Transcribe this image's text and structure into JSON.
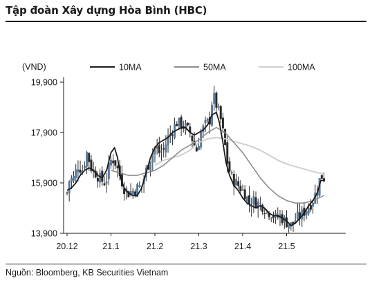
{
  "title": "Tập đoàn Xây dựng Hòa Bình (HBC)",
  "source": "Nguồn: Bloomberg, KB Securities Vietnam",
  "chart_data": {
    "type": "candlestick",
    "unit_label": "(VND)",
    "y_ticks": [
      {
        "value": 13900,
        "label": "13,900"
      },
      {
        "value": 15900,
        "label": "15,900"
      },
      {
        "value": 17900,
        "label": "17,900"
      },
      {
        "value": 19900,
        "label": "19,900"
      }
    ],
    "ylim": [
      13900,
      19900
    ],
    "x_ticks": [
      {
        "month": 0,
        "label": "20.12"
      },
      {
        "month": 1,
        "label": "21.1"
      },
      {
        "month": 2,
        "label": "21.2"
      },
      {
        "month": 3,
        "label": "21.3"
      },
      {
        "month": 4,
        "label": "21.4"
      },
      {
        "month": 5,
        "label": "21.5"
      }
    ],
    "xlim_months": [
      0,
      5.85
    ],
    "colors": {
      "up": "#5a7a9a",
      "down": "#2a2a2a",
      "ma10": "#1a1a1a",
      "ma50": "#8c8c8c",
      "ma100": "#cfcfcf"
    },
    "legend": [
      {
        "name": "10MA",
        "color": "#1a1a1a"
      },
      {
        "name": "50MA",
        "color": "#8c8c8c"
      },
      {
        "name": "100MA",
        "color": "#cfcfcf"
      }
    ],
    "close_anchors": [
      [
        0.0,
        15500
      ],
      [
        0.05,
        16000
      ],
      [
        0.15,
        16100
      ],
      [
        0.25,
        16600
      ],
      [
        0.35,
        16400
      ],
      [
        0.45,
        17100
      ],
      [
        0.55,
        16500
      ],
      [
        0.65,
        16300
      ],
      [
        0.78,
        16000
      ],
      [
        0.88,
        15900
      ],
      [
        0.95,
        16500
      ],
      [
        1.02,
        16900
      ],
      [
        1.1,
        16700
      ],
      [
        1.2,
        16200
      ],
      [
        1.3,
        15700
      ],
      [
        1.4,
        15500
      ],
      [
        1.5,
        15600
      ],
      [
        1.6,
        15700
      ],
      [
        1.7,
        15800
      ],
      [
        1.8,
        16400
      ],
      [
        1.9,
        16900
      ],
      [
        2.0,
        17300
      ],
      [
        2.1,
        17100
      ],
      [
        2.2,
        17200
      ],
      [
        2.3,
        17700
      ],
      [
        2.4,
        18000
      ],
      [
        2.5,
        18300
      ],
      [
        2.6,
        18200
      ],
      [
        2.7,
        18100
      ],
      [
        2.8,
        17900
      ],
      [
        2.9,
        17400
      ],
      [
        2.95,
        17200
      ],
      [
        3.05,
        17900
      ],
      [
        3.15,
        18200
      ],
      [
        3.25,
        18400
      ],
      [
        3.32,
        19400
      ],
      [
        3.4,
        19000
      ],
      [
        3.5,
        18400
      ],
      [
        3.58,
        17600
      ],
      [
        3.66,
        16600
      ],
      [
        3.75,
        16100
      ],
      [
        3.85,
        15900
      ],
      [
        3.95,
        15700
      ],
      [
        4.05,
        15500
      ],
      [
        4.15,
        15100
      ],
      [
        4.25,
        15200
      ],
      [
        4.35,
        15100
      ],
      [
        4.45,
        15000
      ],
      [
        4.55,
        14800
      ],
      [
        4.65,
        14700
      ],
      [
        4.75,
        14500
      ],
      [
        4.85,
        14600
      ],
      [
        4.95,
        14400
      ],
      [
        5.05,
        14300
      ],
      [
        5.12,
        14200
      ],
      [
        5.22,
        14500
      ],
      [
        5.32,
        14600
      ],
      [
        5.42,
        14800
      ],
      [
        5.52,
        15000
      ],
      [
        5.62,
        15300
      ],
      [
        5.7,
        15700
      ],
      [
        5.78,
        16200
      ],
      [
        5.85,
        16100
      ]
    ],
    "ma10": [
      [
        0.0,
        15600
      ],
      [
        0.1,
        15700
      ],
      [
        0.2,
        15900
      ],
      [
        0.3,
        16200
      ],
      [
        0.4,
        16400
      ],
      [
        0.5,
        16500
      ],
      [
        0.6,
        16400
      ],
      [
        0.7,
        16200
      ],
      [
        0.8,
        16100
      ],
      [
        0.9,
        16400
      ],
      [
        1.0,
        17100
      ],
      [
        1.08,
        17300
      ],
      [
        1.15,
        16900
      ],
      [
        1.22,
        16100
      ],
      [
        1.3,
        15700
      ],
      [
        1.4,
        15500
      ],
      [
        1.5,
        15400
      ],
      [
        1.6,
        15400
      ],
      [
        1.7,
        15700
      ],
      [
        1.8,
        16300
      ],
      [
        1.9,
        16900
      ],
      [
        2.0,
        17300
      ],
      [
        2.1,
        17500
      ],
      [
        2.2,
        17600
      ],
      [
        2.3,
        17700
      ],
      [
        2.4,
        17900
      ],
      [
        2.5,
        18000
      ],
      [
        2.6,
        18100
      ],
      [
        2.7,
        18100
      ],
      [
        2.8,
        17900
      ],
      [
        2.9,
        17800
      ],
      [
        3.0,
        17900
      ],
      [
        3.1,
        18000
      ],
      [
        3.2,
        18200
      ],
      [
        3.3,
        18600
      ],
      [
        3.4,
        18700
      ],
      [
        3.47,
        18300
      ],
      [
        3.55,
        17500
      ],
      [
        3.62,
        16700
      ],
      [
        3.7,
        16200
      ],
      [
        3.8,
        15800
      ],
      [
        3.9,
        15600
      ],
      [
        4.0,
        15300
      ],
      [
        4.1,
        15100
      ],
      [
        4.2,
        15000
      ],
      [
        4.3,
        14900
      ],
      [
        4.4,
        15000
      ],
      [
        4.5,
        14900
      ],
      [
        4.6,
        14700
      ],
      [
        4.7,
        14600
      ],
      [
        4.8,
        14600
      ],
      [
        4.9,
        14500
      ],
      [
        5.0,
        14400
      ],
      [
        5.1,
        14200
      ],
      [
        5.2,
        14300
      ],
      [
        5.3,
        14500
      ],
      [
        5.4,
        14700
      ],
      [
        5.5,
        15000
      ],
      [
        5.6,
        15200
      ],
      [
        5.7,
        15500
      ],
      [
        5.78,
        16000
      ],
      [
        5.85,
        16000
      ]
    ],
    "ma50": [
      [
        1.0,
        16400
      ],
      [
        1.2,
        16300
      ],
      [
        1.4,
        16200
      ],
      [
        1.6,
        16200
      ],
      [
        1.8,
        16300
      ],
      [
        2.0,
        16400
      ],
      [
        2.2,
        16600
      ],
      [
        2.4,
        16900
      ],
      [
        2.6,
        17200
      ],
      [
        2.8,
        17400
      ],
      [
        3.0,
        17600
      ],
      [
        3.2,
        17900
      ],
      [
        3.4,
        18100
      ],
      [
        3.6,
        17900
      ],
      [
        3.8,
        17500
      ],
      [
        4.0,
        17100
      ],
      [
        4.2,
        16600
      ],
      [
        4.4,
        16100
      ],
      [
        4.6,
        15700
      ],
      [
        4.8,
        15400
      ],
      [
        5.0,
        15200
      ],
      [
        5.2,
        15100
      ],
      [
        5.4,
        15100
      ],
      [
        5.6,
        15200
      ],
      [
        5.85,
        15400
      ]
    ],
    "ma100": [
      [
        2.0,
        16600
      ],
      [
        2.2,
        16800
      ],
      [
        2.4,
        16900
      ],
      [
        2.6,
        17000
      ],
      [
        2.8,
        17200
      ],
      [
        3.0,
        17500
      ],
      [
        3.2,
        17650
      ],
      [
        3.4,
        17700
      ],
      [
        3.6,
        17650
      ],
      [
        3.8,
        17550
      ],
      [
        4.0,
        17450
      ],
      [
        4.2,
        17350
      ],
      [
        4.4,
        17200
      ],
      [
        4.6,
        17000
      ],
      [
        4.8,
        16800
      ],
      [
        5.0,
        16650
      ],
      [
        5.2,
        16550
      ],
      [
        5.4,
        16450
      ],
      [
        5.6,
        16350
      ],
      [
        5.85,
        16250
      ]
    ]
  }
}
